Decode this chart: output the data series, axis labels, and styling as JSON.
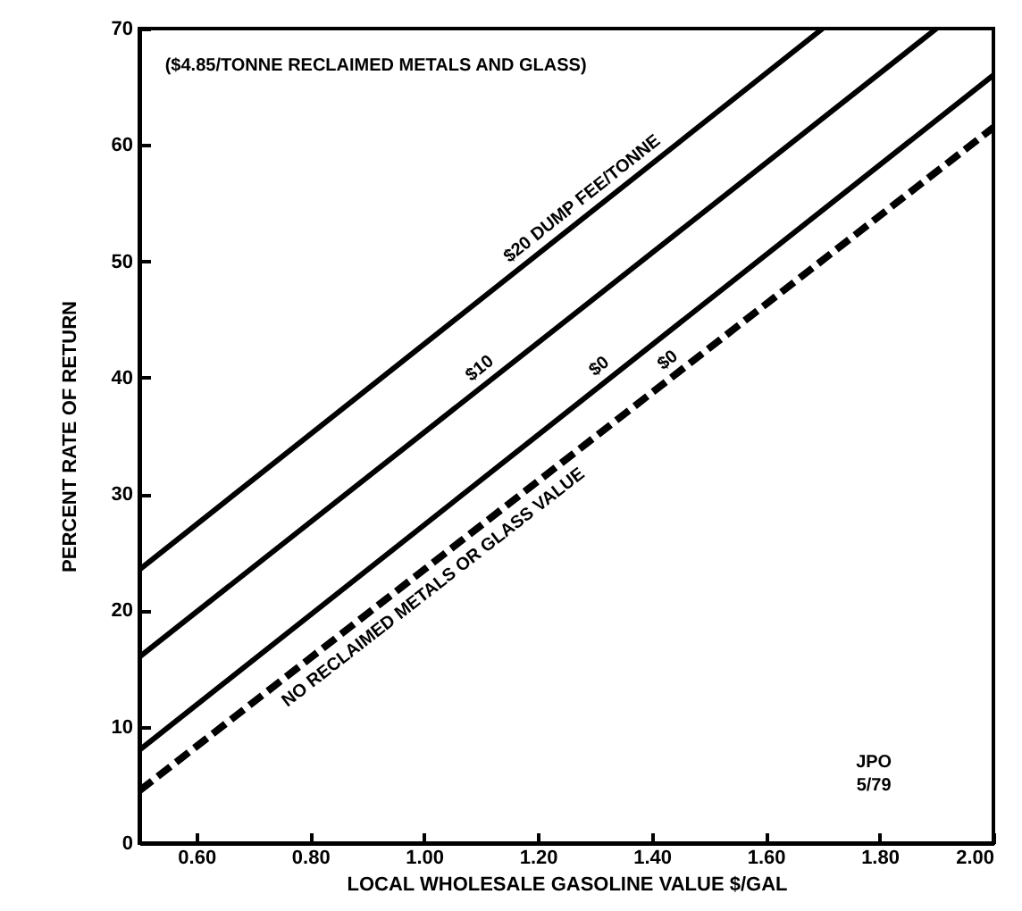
{
  "chart_data": {
    "type": "line",
    "xlabel": "LOCAL WHOLESALE GASOLINE VALUE $/GAL",
    "ylabel": "PERCENT RATE OF RETURN",
    "annotations": [
      "($4.85/TONNE RECLAIMED METALS AND GLASS)",
      "NO RECLAIMED METALS OR GLASS VALUE",
      "JPO 5/79"
    ],
    "series": [
      {
        "name": "$20 DUMP FEE/TONNE",
        "color": "#000000",
        "x": [
          0.5,
          1.7
        ],
        "values": [
          23.5,
          70
        ],
        "line_style": "solid"
      },
      {
        "name": "$10",
        "color": "#000000",
        "x": [
          0.5,
          1.9
        ],
        "values": [
          16,
          70
        ],
        "line_style": "solid"
      },
      {
        "name": "$0",
        "color": "#000000",
        "x": [
          0.5,
          2.0
        ],
        "values": [
          8,
          66
        ],
        "line_style": "solid"
      },
      {
        "name": "$0",
        "color": "#000000",
        "x": [
          0.5,
          2.0
        ],
        "values": [
          4.5,
          61.5
        ],
        "line_style": "dashed"
      }
    ],
    "xlim": [
      0.5,
      2.0
    ],
    "ylim": [
      0,
      70
    ],
    "xticks": [
      {
        "value": 0.6,
        "label": "0.60"
      },
      {
        "value": 0.8,
        "label": "0.80"
      },
      {
        "value": 1.0,
        "label": "1.00"
      },
      {
        "value": 1.2,
        "label": "1.20"
      },
      {
        "value": 1.4,
        "label": "1.40"
      },
      {
        "value": 1.6,
        "label": "1.60"
      },
      {
        "value": 1.8,
        "label": "1.80"
      },
      {
        "value": 2.0,
        "label": "2.00"
      }
    ],
    "yticks": [
      0,
      10,
      20,
      30,
      40,
      50,
      60,
      70
    ],
    "grid": false
  }
}
